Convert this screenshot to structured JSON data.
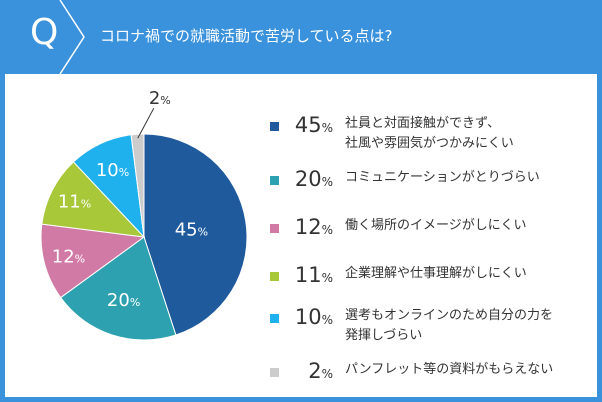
{
  "header": {
    "q_mark": "Q",
    "question": "コロナ禍での就職活動で苦労している点は?"
  },
  "colors": {
    "frame": "#3a91dc"
  },
  "chart_data": {
    "type": "pie",
    "title": "",
    "unit": "%",
    "slices": [
      {
        "value": 45,
        "label": "社員と対面接触ができず、社風や雰囲気がつかみにくい",
        "label_lines": [
          "社員と対面接触ができず、",
          "社風や雰囲気がつかみにくい"
        ],
        "color": "#1f5a9c",
        "text_color": "#ffffff"
      },
      {
        "value": 20,
        "label": "コミュニケーションがとりづらい",
        "label_lines": [
          "コミュニケーションがとりづらい"
        ],
        "color": "#2ea1b0",
        "text_color": "#ffffff"
      },
      {
        "value": 12,
        "label": "働く場所のイメージがしにくい",
        "label_lines": [
          "働く場所のイメージがしにくい"
        ],
        "color": "#d27aa6",
        "text_color": "#ffffff"
      },
      {
        "value": 11,
        "label": "企業理解や仕事理解がしにくい",
        "label_lines": [
          "企業理解や仕事理解がしにくい"
        ],
        "color": "#a8c83a",
        "text_color": "#ffffff"
      },
      {
        "value": 10,
        "label": "選考もオンラインのため自分の力を発揮しづらい",
        "label_lines": [
          "選考もオンラインのため自分の力を",
          "発揮しづらい"
        ],
        "color": "#1fb0ee",
        "text_color": "#ffffff"
      },
      {
        "value": 2,
        "label": "パンフレット等の資料がもらえない",
        "label_lines": [
          "パンフレット等の資料がもらえない"
        ],
        "color": "#cccccc",
        "text_color": "#333333"
      }
    ]
  }
}
